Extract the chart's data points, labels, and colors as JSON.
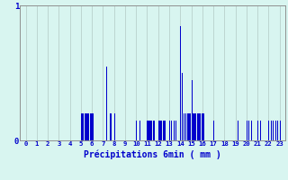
{
  "xlabel": "Précipitations 6min ( mm )",
  "background_color": "#d8f5f0",
  "bar_color": "#0000cc",
  "grid_color": "#b8d0cc",
  "axis_color": "#909090",
  "text_color": "#0000cc",
  "ylim": [
    0,
    1.0
  ],
  "xlim": [
    -0.5,
    23.5
  ],
  "yticks": [
    0,
    1
  ],
  "xticks": [
    0,
    1,
    2,
    3,
    4,
    5,
    6,
    7,
    8,
    9,
    10,
    11,
    12,
    13,
    14,
    15,
    16,
    17,
    18,
    19,
    20,
    21,
    22,
    23
  ],
  "bars": [
    [
      5.0,
      0.2
    ],
    [
      5.1,
      0.2
    ],
    [
      5.2,
      0.2
    ],
    [
      5.3,
      0.2
    ],
    [
      5.4,
      0.2
    ],
    [
      5.5,
      0.2
    ],
    [
      5.6,
      0.2
    ],
    [
      5.7,
      0.2
    ],
    [
      5.8,
      0.2
    ],
    [
      5.9,
      0.2
    ],
    [
      6.0,
      0.2
    ],
    [
      6.1,
      0.2
    ],
    [
      7.3,
      0.55
    ],
    [
      7.6,
      0.2
    ],
    [
      7.7,
      0.2
    ],
    [
      8.0,
      0.2
    ],
    [
      10.0,
      0.15
    ],
    [
      10.3,
      0.15
    ],
    [
      11.0,
      0.15
    ],
    [
      11.1,
      0.15
    ],
    [
      11.2,
      0.15
    ],
    [
      11.3,
      0.15
    ],
    [
      11.4,
      0.15
    ],
    [
      11.5,
      0.15
    ],
    [
      11.6,
      0.15
    ],
    [
      12.0,
      0.15
    ],
    [
      12.1,
      0.15
    ],
    [
      12.2,
      0.15
    ],
    [
      12.3,
      0.15
    ],
    [
      12.4,
      0.15
    ],
    [
      12.5,
      0.15
    ],
    [
      12.6,
      0.15
    ],
    [
      13.0,
      0.15
    ],
    [
      13.2,
      0.15
    ],
    [
      13.4,
      0.15
    ],
    [
      13.6,
      0.15
    ],
    [
      14.0,
      0.85
    ],
    [
      14.15,
      0.5
    ],
    [
      14.3,
      0.2
    ],
    [
      14.5,
      0.2
    ],
    [
      14.6,
      0.2
    ],
    [
      14.7,
      0.2
    ],
    [
      14.8,
      0.2
    ],
    [
      14.9,
      0.2
    ],
    [
      15.0,
      0.45
    ],
    [
      15.1,
      0.2
    ],
    [
      15.2,
      0.2
    ],
    [
      15.3,
      0.2
    ],
    [
      15.4,
      0.2
    ],
    [
      15.5,
      0.2
    ],
    [
      15.6,
      0.2
    ],
    [
      15.7,
      0.2
    ],
    [
      15.8,
      0.2
    ],
    [
      15.9,
      0.2
    ],
    [
      16.0,
      0.2
    ],
    [
      16.1,
      0.2
    ],
    [
      17.0,
      0.15
    ],
    [
      19.2,
      0.15
    ],
    [
      20.0,
      0.15
    ],
    [
      20.2,
      0.15
    ],
    [
      20.4,
      0.15
    ],
    [
      21.0,
      0.15
    ],
    [
      21.2,
      0.15
    ],
    [
      22.0,
      0.15
    ],
    [
      22.2,
      0.15
    ],
    [
      22.4,
      0.15
    ],
    [
      22.6,
      0.15
    ],
    [
      22.8,
      0.15
    ],
    [
      23.0,
      0.15
    ]
  ],
  "bar_width": 0.085,
  "figsize": [
    3.2,
    2.0
  ],
  "dpi": 100
}
